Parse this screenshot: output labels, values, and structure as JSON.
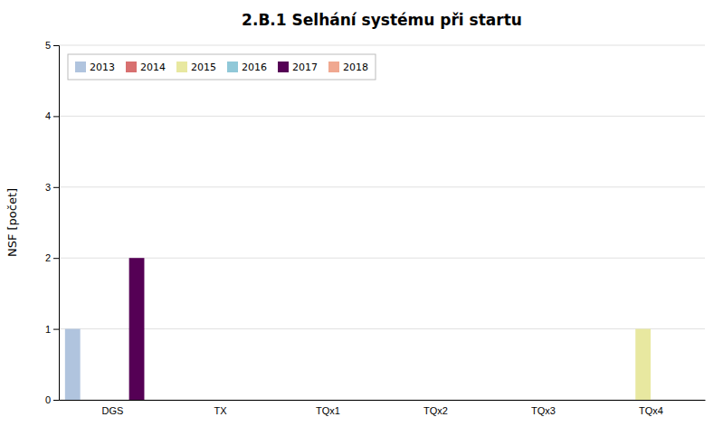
{
  "chart_data": {
    "type": "bar",
    "title": "2.B.1 Selhání systému při startu",
    "y_label": "NSF [počet]",
    "categories": [
      "DGS",
      "TX",
      "TQx1",
      "TQx2",
      "TQx3",
      "TQx4"
    ],
    "series": [
      {
        "name": "2013",
        "color": "#b0c4de",
        "values": [
          1,
          0,
          0,
          0,
          0,
          0
        ]
      },
      {
        "name": "2014",
        "color": "#d87070",
        "values": [
          0,
          0,
          0,
          0,
          0,
          0
        ]
      },
      {
        "name": "2015",
        "color": "#e8e8a0",
        "values": [
          0,
          0,
          0,
          0,
          0,
          1
        ]
      },
      {
        "name": "2016",
        "color": "#90c8d8",
        "values": [
          0,
          0,
          0,
          0,
          0,
          0
        ]
      },
      {
        "name": "2017",
        "color": "#550055",
        "values": [
          2,
          0,
          0,
          0,
          0,
          0
        ]
      },
      {
        "name": "2018",
        "color": "#f0a890",
        "values": [
          0,
          0,
          0,
          0,
          0,
          0
        ]
      }
    ],
    "ylim": [
      0,
      5
    ],
    "yticks": [
      0,
      1,
      2,
      3,
      4,
      5
    ],
    "grid": true,
    "legend": "upper left"
  }
}
